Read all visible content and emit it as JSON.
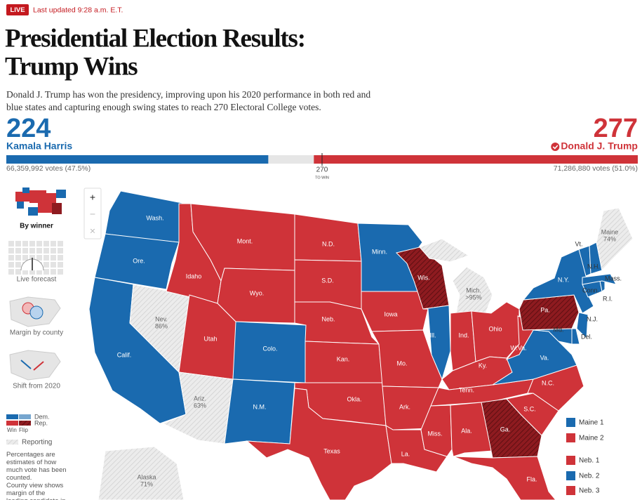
{
  "header": {
    "live": "LIVE",
    "updated": "Last updated 9:28 a.m. E.T.",
    "title": [
      "Presidential Election Results:",
      "Trump Wins"
    ],
    "description": "Donald J. Trump has won the presidency, improving upon his 2020 performance in both red and blue states and capturing enough swing states to reach 270 Electoral College votes."
  },
  "tally": {
    "candidates": [
      {
        "name": "Kamala Harris",
        "electoral_votes": 224,
        "votes": "66,359,992 votes (47.5%)",
        "color": "#1a6aaf"
      },
      {
        "name": "Donald J. Trump",
        "electoral_votes": 277,
        "votes": "71,286,880 votes (51.0%)",
        "color": "#cf3339"
      }
    ],
    "to_win": 270,
    "to_win_label": "TO WIN"
  },
  "views": [
    "By winner",
    "Live forecast",
    "Margin by county",
    "Shift from 2020"
  ],
  "legend": {
    "dem": "Dem.",
    "rep": "Rep.",
    "win": "Win",
    "flip": "Flip",
    "reporting": "Reporting",
    "notes": [
      "Percentages are estimates of how much vote has been counted.",
      "County view shows margin of the leading candidate in the"
    ]
  },
  "zoom": [
    "+",
    "−",
    "×"
  ],
  "map": {
    "colors": {
      "dem": "#1a6aaf",
      "rep": "#cf3339",
      "flip": "#8e1b20",
      "reporting": "#e4e4e4"
    },
    "states": [
      {
        "label": "Wash.",
        "winner": "dem"
      },
      {
        "label": "Ore.",
        "winner": "dem"
      },
      {
        "label": "Calif.",
        "winner": "dem"
      },
      {
        "label": "Nev.",
        "winner": "reporting",
        "reporting": "86%"
      },
      {
        "label": "Idaho",
        "winner": "rep"
      },
      {
        "label": "Mont.",
        "winner": "rep"
      },
      {
        "label": "Wyo.",
        "winner": "rep"
      },
      {
        "label": "Utah",
        "winner": "rep"
      },
      {
        "label": "Ariz.",
        "winner": "reporting",
        "reporting": "63%"
      },
      {
        "label": "Colo.",
        "winner": "dem"
      },
      {
        "label": "N.M.",
        "winner": "dem"
      },
      {
        "label": "N.D.",
        "winner": "rep"
      },
      {
        "label": "S.D.",
        "winner": "rep"
      },
      {
        "label": "Neb.",
        "winner": "rep"
      },
      {
        "label": "Kan.",
        "winner": "rep"
      },
      {
        "label": "Okla.",
        "winner": "rep"
      },
      {
        "label": "Texas",
        "winner": "rep"
      },
      {
        "label": "Minn.",
        "winner": "dem"
      },
      {
        "label": "Iowa",
        "winner": "rep"
      },
      {
        "label": "Mo.",
        "winner": "rep"
      },
      {
        "label": "Ark.",
        "winner": "rep"
      },
      {
        "label": "La.",
        "winner": "rep"
      },
      {
        "label": "Wis.",
        "winner": "rep",
        "flip": true
      },
      {
        "label": "Ill.",
        "winner": "dem"
      },
      {
        "label": "Mich.",
        "winner": "reporting",
        "reporting": ">95%"
      },
      {
        "label": "Ind.",
        "winner": "rep"
      },
      {
        "label": "Ohio",
        "winner": "rep"
      },
      {
        "label": "Ky.",
        "winner": "rep"
      },
      {
        "label": "Tenn.",
        "winner": "rep"
      },
      {
        "label": "Miss.",
        "winner": "rep"
      },
      {
        "label": "Ala.",
        "winner": "rep"
      },
      {
        "label": "Ga.",
        "winner": "rep",
        "flip": true
      },
      {
        "label": "Fla.",
        "winner": "rep"
      },
      {
        "label": "S.C.",
        "winner": "rep"
      },
      {
        "label": "N.C.",
        "winner": "rep"
      },
      {
        "label": "Va.",
        "winner": "dem"
      },
      {
        "label": "W.Va.",
        "winner": "rep"
      },
      {
        "label": "Pa.",
        "winner": "rep",
        "flip": true
      },
      {
        "label": "N.Y.",
        "winner": "dem"
      },
      {
        "label": "Md.",
        "winner": "dem"
      },
      {
        "label": "Del.",
        "winner": "dem"
      },
      {
        "label": "N.J.",
        "winner": "dem"
      },
      {
        "label": "Conn.",
        "winner": "dem"
      },
      {
        "label": "R.I.",
        "winner": "dem"
      },
      {
        "label": "Mass.",
        "winner": "dem"
      },
      {
        "label": "Vt.",
        "winner": "dem"
      },
      {
        "label": "N.H.",
        "winner": "dem"
      },
      {
        "label": "Maine",
        "winner": "reporting",
        "reporting": "74%"
      },
      {
        "label": "Alaska",
        "winner": "reporting",
        "reporting": "71%"
      }
    ],
    "districts": [
      {
        "label": "Maine 1",
        "winner": "dem"
      },
      {
        "label": "Maine 2",
        "winner": "rep"
      },
      {
        "label": "Neb. 1",
        "winner": "rep"
      },
      {
        "label": "Neb. 2",
        "winner": "dem"
      },
      {
        "label": "Neb. 3",
        "winner": "rep"
      }
    ]
  }
}
